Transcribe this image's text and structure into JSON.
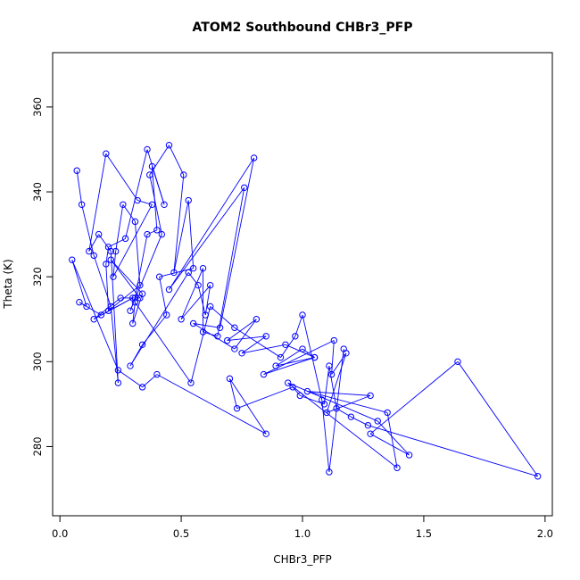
{
  "chart_data": {
    "type": "line",
    "title": "ATOM2 Southbound CHBr3_PFP",
    "xlabel": "CHBr3_PFP",
    "ylabel": "Theta (K)",
    "xlim": [
      -0.03,
      2.03
    ],
    "ylim": [
      263.7,
      372.8
    ],
    "xticks": [
      0.0,
      0.5,
      1.0,
      1.5,
      2.0
    ],
    "xtick_labels": [
      "0.0",
      "0.5",
      "1.0",
      "1.5",
      "2.0"
    ],
    "yticks": [
      280,
      300,
      320,
      340,
      360
    ],
    "ytick_labels": [
      "280",
      "300",
      "320",
      "340",
      "360"
    ],
    "grid": false,
    "legend": "none",
    "colors": {
      "series": "#0000ff",
      "axis": "#000000",
      "background": "#ffffff"
    },
    "marker": "open-circle",
    "series": [
      {
        "x": [
          0.07,
          0.09,
          0.14,
          0.21,
          0.24,
          0.21,
          0.16,
          0.12,
          0.19,
          0.32,
          0.38,
          0.22,
          0.23,
          0.26,
          0.31,
          0.33,
          0.2,
          0.19,
          0.2,
          0.27,
          0.36,
          0.43,
          0.38,
          0.4,
          0.36,
          0.31,
          0.29,
          0.42,
          0.37,
          0.45,
          0.51,
          0.47,
          0.53,
          0.55,
          0.41,
          0.44,
          0.34,
          0.29,
          0.53,
          0.57,
          0.6,
          0.62,
          0.5,
          0.59,
          0.59,
          0.65,
          0.76,
          0.45,
          0.8,
          0.66,
          0.55,
          0.72,
          0.81,
          0.69,
          0.85,
          0.75,
          0.93,
          1.05,
          0.89,
          1.0,
          1.05,
          0.84,
          1.13,
          1.12,
          1.18,
          1.1,
          1.28,
          1.02,
          1.35,
          1.39,
          0.94,
          1.31,
          1.44,
          1.28,
          1.64,
          1.97,
          1.27,
          1.2,
          1.14,
          1.11,
          1.09,
          0.99,
          0.96,
          0.73,
          0.7,
          0.85,
          0.4,
          0.34,
          0.24,
          0.05,
          0.11,
          0.08,
          0.17,
          0.3,
          0.14,
          0.25,
          0.33,
          0.21,
          0.34,
          0.3,
          0.31,
          0.54,
          0.62,
          0.72,
          0.91,
          0.97,
          1.0,
          1.08,
          1.11,
          1.17
        ],
        "y": [
          345,
          337,
          325,
          313,
          295,
          326,
          330,
          326,
          349,
          338,
          337,
          320,
          326,
          337,
          333,
          318,
          312,
          323,
          327,
          329,
          350,
          337,
          346,
          331,
          330,
          315,
          312,
          330,
          344,
          351,
          344,
          321,
          338,
          322,
          320,
          311,
          304,
          299,
          321,
          318,
          311,
          318,
          310,
          322,
          307,
          306,
          341,
          317,
          348,
          308,
          309,
          303,
          310,
          305,
          306,
          302,
          304,
          301,
          299,
          303,
          301,
          297,
          305,
          297,
          302,
          288,
          292,
          293,
          288,
          275,
          295,
          286,
          278,
          283,
          300,
          273,
          285,
          287,
          289,
          299,
          290,
          292,
          294,
          289,
          296,
          283,
          297,
          294,
          298,
          324,
          313,
          314,
          311,
          315,
          310,
          315,
          315,
          324,
          316,
          309,
          314,
          295,
          313,
          308,
          301,
          306,
          311,
          291,
          274,
          303
        ]
      }
    ]
  }
}
